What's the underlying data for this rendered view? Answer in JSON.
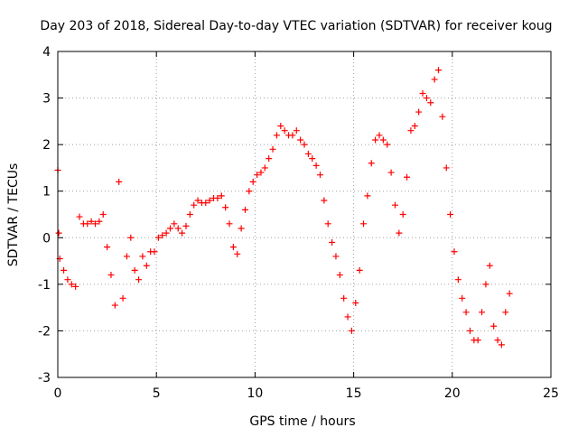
{
  "chart_data": {
    "type": "scatter",
    "title": "Day 203 of 2018, Sidereal Day-to-day VTEC variation (SDTVAR) for receiver koug",
    "xlabel": "GPS time / hours",
    "ylabel": "SDTVAR / TECUs",
    "xlim": [
      0,
      25
    ],
    "ylim": [
      -3,
      4
    ],
    "xticks": [
      0,
      5,
      10,
      15,
      20,
      25
    ],
    "yticks": [
      -3,
      -2,
      -1,
      0,
      1,
      2,
      3,
      4
    ],
    "grid": true,
    "marker": "+",
    "color": "#ff0000",
    "series": [
      {
        "name": "SDTVAR",
        "x": [
          0.0,
          0.05,
          0.1,
          0.3,
          0.5,
          0.7,
          0.9,
          1.1,
          1.3,
          1.5,
          1.7,
          1.9,
          2.1,
          2.3,
          2.5,
          2.7,
          2.9,
          3.1,
          3.3,
          3.5,
          3.7,
          3.9,
          4.1,
          4.3,
          4.5,
          4.7,
          4.9,
          5.1,
          5.3,
          5.5,
          5.7,
          5.9,
          6.1,
          6.3,
          6.5,
          6.7,
          6.9,
          7.1,
          7.3,
          7.5,
          7.7,
          7.9,
          8.1,
          8.3,
          8.5,
          8.7,
          8.9,
          9.1,
          9.3,
          9.5,
          9.7,
          9.9,
          10.1,
          10.3,
          10.5,
          10.7,
          10.9,
          11.1,
          11.3,
          11.5,
          11.7,
          11.9,
          12.1,
          12.3,
          12.5,
          12.7,
          12.9,
          13.1,
          13.3,
          13.5,
          13.7,
          13.9,
          14.1,
          14.3,
          14.5,
          14.7,
          14.9,
          15.1,
          15.3,
          15.5,
          15.7,
          15.9,
          16.1,
          16.3,
          16.5,
          16.7,
          16.9,
          17.1,
          17.3,
          17.5,
          17.7,
          17.9,
          18.1,
          18.3,
          18.5,
          18.7,
          18.9,
          19.1,
          19.3,
          19.5,
          19.7,
          19.9,
          20.1,
          20.3,
          20.5,
          20.7,
          20.9,
          21.1,
          21.3,
          21.5,
          21.7,
          21.9,
          22.1,
          22.3,
          22.5,
          22.7,
          22.9
        ],
        "y": [
          1.45,
          0.1,
          -0.45,
          -0.7,
          -0.9,
          -1.0,
          -1.05,
          0.45,
          0.3,
          0.3,
          0.35,
          0.3,
          0.35,
          0.5,
          -0.2,
          -0.8,
          -1.45,
          1.2,
          -1.3,
          -0.4,
          0.0,
          -0.7,
          -0.9,
          -0.4,
          -0.6,
          -0.3,
          -0.3,
          0.0,
          0.05,
          0.1,
          0.2,
          0.3,
          0.2,
          0.1,
          0.25,
          0.5,
          0.7,
          0.8,
          0.75,
          0.75,
          0.8,
          0.85,
          0.85,
          0.9,
          0.65,
          0.3,
          -0.2,
          -0.35,
          0.2,
          0.6,
          1.0,
          1.2,
          1.35,
          1.4,
          1.5,
          1.7,
          1.9,
          2.2,
          2.4,
          2.3,
          2.2,
          2.2,
          2.3,
          2.1,
          2.0,
          1.8,
          1.7,
          1.55,
          1.35,
          0.8,
          0.3,
          -0.1,
          -0.4,
          -0.8,
          -1.3,
          -1.7,
          -2.0,
          -1.4,
          -0.7,
          0.3,
          0.9,
          1.6,
          2.1,
          2.2,
          2.1,
          2.0,
          1.4,
          0.7,
          0.1,
          0.5,
          1.3,
          2.3,
          2.4,
          2.7,
          3.1,
          3.0,
          2.9,
          3.4,
          3.6,
          2.6,
          1.5,
          0.5,
          -0.3,
          -0.9,
          -1.3,
          -1.6,
          -2.0,
          -2.2,
          -2.2,
          -1.6,
          -1.0,
          -0.6,
          -1.9,
          -2.2,
          -2.3,
          -1.6,
          -1.2
        ]
      }
    ]
  }
}
